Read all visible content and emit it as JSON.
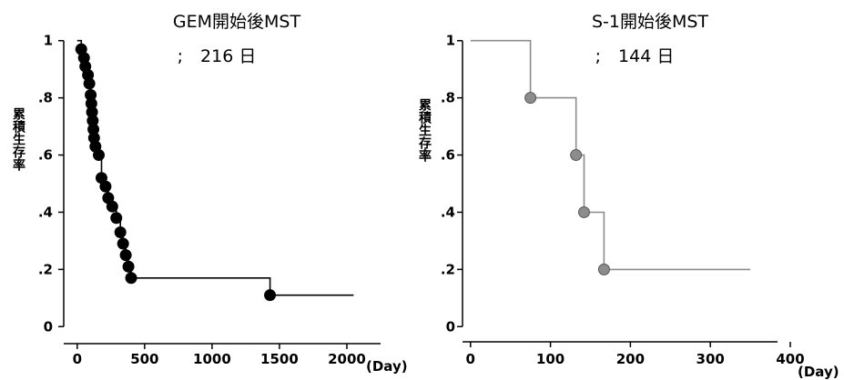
{
  "chart_data": [
    {
      "type": "line",
      "step": true,
      "title": "GEM開始後MST",
      "subtitle": ";　216 日",
      "ylabel": "累積生存率",
      "xunit": "(Day)",
      "xlim": [
        -100,
        2250
      ],
      "ylim": [
        -0.05,
        1.05
      ],
      "xticks": [
        0,
        500,
        1000,
        1500,
        2000
      ],
      "xtick_labels": [
        "0",
        "500",
        "1000",
        "1500",
        "2000"
      ],
      "yticks": [
        0,
        0.2,
        0.4,
        0.6,
        0.8,
        1
      ],
      "ytick_labels": [
        "0",
        ".2",
        ".4",
        ".6",
        ".8",
        "1"
      ],
      "line_color": "#000000",
      "marker_color": "#000000",
      "curve": [
        {
          "x": 0,
          "y": 1
        },
        {
          "x": 30,
          "y": 1
        },
        {
          "x": 30,
          "y": 0.97
        },
        {
          "x": 50,
          "y": 0.97
        },
        {
          "x": 50,
          "y": 0.94
        },
        {
          "x": 60,
          "y": 0.94
        },
        {
          "x": 60,
          "y": 0.91
        },
        {
          "x": 80,
          "y": 0.91
        },
        {
          "x": 80,
          "y": 0.88
        },
        {
          "x": 90,
          "y": 0.88
        },
        {
          "x": 90,
          "y": 0.85
        },
        {
          "x": 100,
          "y": 0.85
        },
        {
          "x": 100,
          "y": 0.81
        },
        {
          "x": 105,
          "y": 0.81
        },
        {
          "x": 105,
          "y": 0.78
        },
        {
          "x": 110,
          "y": 0.78
        },
        {
          "x": 110,
          "y": 0.75
        },
        {
          "x": 115,
          "y": 0.75
        },
        {
          "x": 115,
          "y": 0.72
        },
        {
          "x": 120,
          "y": 0.72
        },
        {
          "x": 120,
          "y": 0.69
        },
        {
          "x": 125,
          "y": 0.69
        },
        {
          "x": 125,
          "y": 0.66
        },
        {
          "x": 135,
          "y": 0.66
        },
        {
          "x": 135,
          "y": 0.63
        },
        {
          "x": 160,
          "y": 0.63
        },
        {
          "x": 160,
          "y": 0.6
        },
        {
          "x": 180,
          "y": 0.6
        },
        {
          "x": 180,
          "y": 0.52
        },
        {
          "x": 210,
          "y": 0.52
        },
        {
          "x": 210,
          "y": 0.49
        },
        {
          "x": 230,
          "y": 0.49
        },
        {
          "x": 230,
          "y": 0.45
        },
        {
          "x": 260,
          "y": 0.45
        },
        {
          "x": 260,
          "y": 0.42
        },
        {
          "x": 290,
          "y": 0.42
        },
        {
          "x": 290,
          "y": 0.38
        },
        {
          "x": 320,
          "y": 0.38
        },
        {
          "x": 320,
          "y": 0.33
        },
        {
          "x": 340,
          "y": 0.33
        },
        {
          "x": 340,
          "y": 0.29
        },
        {
          "x": 360,
          "y": 0.29
        },
        {
          "x": 360,
          "y": 0.25
        },
        {
          "x": 380,
          "y": 0.25
        },
        {
          "x": 380,
          "y": 0.21
        },
        {
          "x": 400,
          "y": 0.21
        },
        {
          "x": 400,
          "y": 0.17
        },
        {
          "x": 1430,
          "y": 0.17
        },
        {
          "x": 1430,
          "y": 0.11
        },
        {
          "x": 2050,
          "y": 0.11
        }
      ],
      "markers": [
        {
          "x": 30,
          "y": 0.97
        },
        {
          "x": 50,
          "y": 0.94
        },
        {
          "x": 60,
          "y": 0.91
        },
        {
          "x": 80,
          "y": 0.88
        },
        {
          "x": 90,
          "y": 0.85
        },
        {
          "x": 100,
          "y": 0.81
        },
        {
          "x": 105,
          "y": 0.78
        },
        {
          "x": 110,
          "y": 0.75
        },
        {
          "x": 115,
          "y": 0.72
        },
        {
          "x": 120,
          "y": 0.69
        },
        {
          "x": 125,
          "y": 0.66
        },
        {
          "x": 135,
          "y": 0.63
        },
        {
          "x": 160,
          "y": 0.6
        },
        {
          "x": 180,
          "y": 0.52
        },
        {
          "x": 210,
          "y": 0.49
        },
        {
          "x": 230,
          "y": 0.45
        },
        {
          "x": 260,
          "y": 0.42
        },
        {
          "x": 290,
          "y": 0.38
        },
        {
          "x": 320,
          "y": 0.33
        },
        {
          "x": 340,
          "y": 0.29
        },
        {
          "x": 360,
          "y": 0.25
        },
        {
          "x": 380,
          "y": 0.21
        },
        {
          "x": 400,
          "y": 0.17
        },
        {
          "x": 1430,
          "y": 0.11
        }
      ]
    },
    {
      "type": "line",
      "step": true,
      "title": "S-1開始後MST",
      "subtitle": ";　144 日",
      "ylabel": "累積生存率",
      "xunit": "(Day)",
      "xlim": [
        -10,
        400
      ],
      "ylim": [
        -0.05,
        1.05
      ],
      "xticks": [
        0,
        100,
        200,
        300,
        400
      ],
      "xtick_labels": [
        "0",
        "100",
        "200",
        "300",
        "400"
      ],
      "yticks": [
        0,
        0.2,
        0.4,
        0.6,
        0.8,
        1
      ],
      "ytick_labels": [
        "0",
        ".2",
        ".4",
        ".6",
        ".8",
        "1"
      ],
      "line_color": "#8c8c8c",
      "marker_color": "#8c8c8c",
      "curve": [
        {
          "x": 0,
          "y": 1
        },
        {
          "x": 75,
          "y": 1
        },
        {
          "x": 75,
          "y": 0.8
        },
        {
          "x": 132,
          "y": 0.8
        },
        {
          "x": 132,
          "y": 0.6
        },
        {
          "x": 142,
          "y": 0.6
        },
        {
          "x": 142,
          "y": 0.4
        },
        {
          "x": 167,
          "y": 0.4
        },
        {
          "x": 167,
          "y": 0.2
        },
        {
          "x": 350,
          "y": 0.2
        }
      ],
      "markers": [
        {
          "x": 75,
          "y": 0.8
        },
        {
          "x": 132,
          "y": 0.6
        },
        {
          "x": 142,
          "y": 0.4
        },
        {
          "x": 167,
          "y": 0.2
        }
      ]
    }
  ]
}
